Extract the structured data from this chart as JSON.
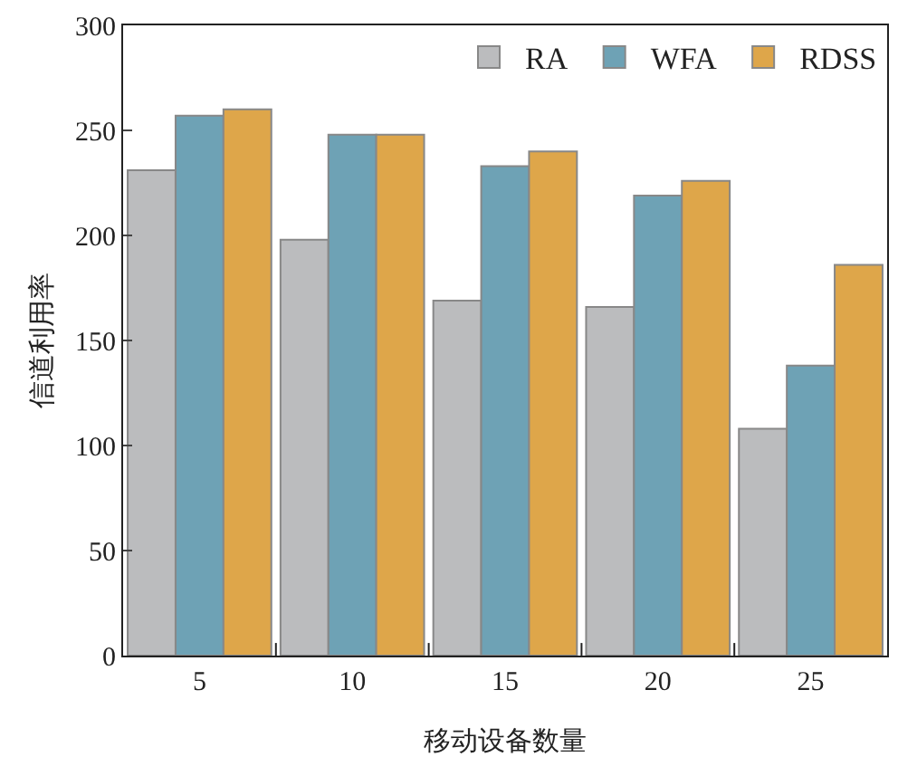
{
  "chart_data": {
    "type": "bar",
    "xlabel": "移动设备数量",
    "ylabel": "信道利用率",
    "categories": [
      "5",
      "10",
      "15",
      "20",
      "25"
    ],
    "series": [
      {
        "name": "RA",
        "color": "#bbbcbe",
        "values": [
          231,
          198,
          169,
          166,
          108
        ]
      },
      {
        "name": "WFA",
        "color": "#6ea2b5",
        "values": [
          257,
          248,
          233,
          219,
          138
        ]
      },
      {
        "name": "RDSS",
        "color": "#dea64a",
        "values": [
          260,
          248,
          240,
          226,
          186
        ]
      }
    ],
    "ylim": [
      0,
      300
    ],
    "yticks": [
      0,
      50,
      100,
      150,
      200,
      250,
      300
    ],
    "grid": false,
    "legend": "top right"
  }
}
